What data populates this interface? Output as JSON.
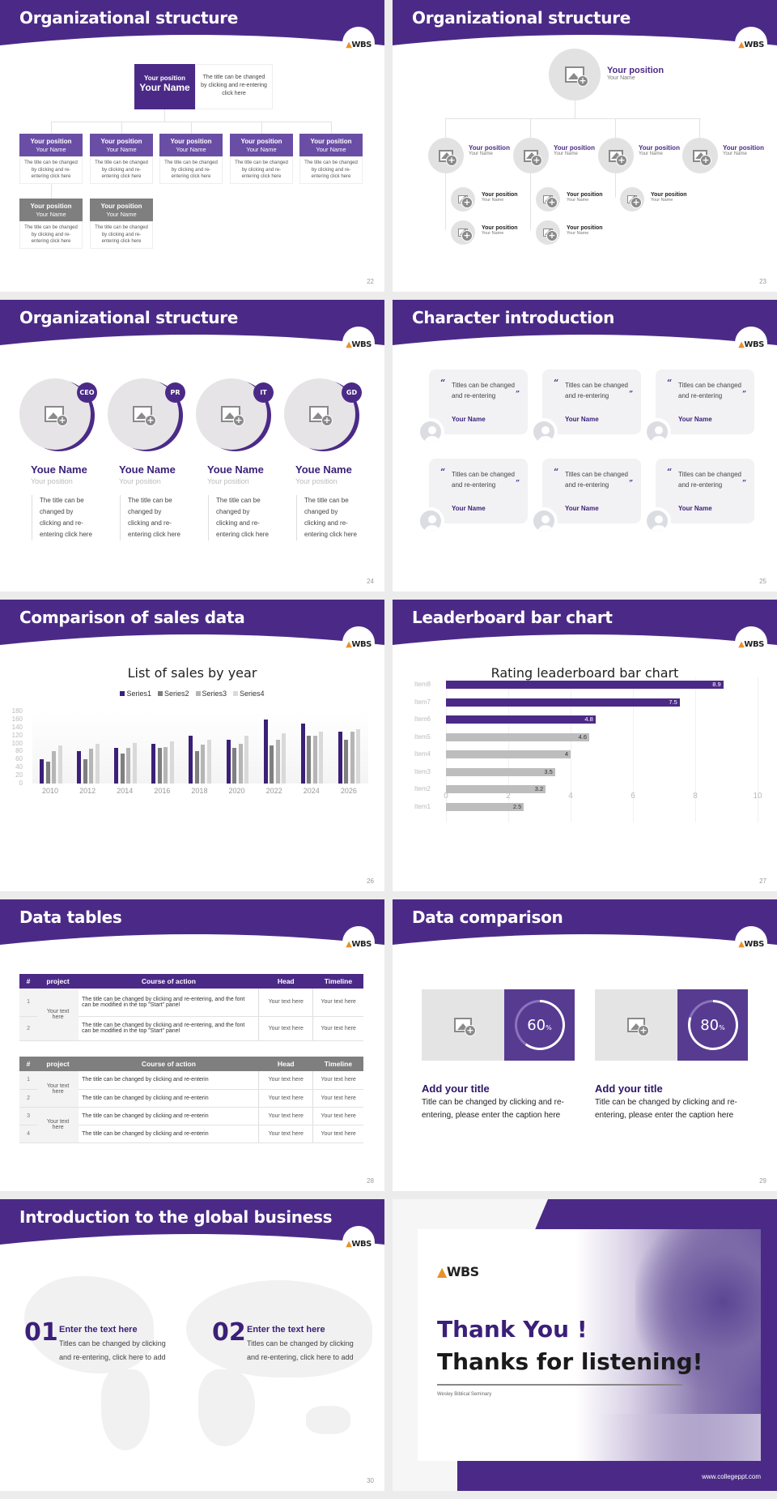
{
  "logo": {
    "text": "WBS"
  },
  "slides": {
    "s22": {
      "title": "Organizational structure",
      "page": "22",
      "top": {
        "position": "Your position",
        "name": "Your Name",
        "desc": "The title can be changed by clicking and re-entering click here"
      },
      "boxes": [
        {
          "position": "Your position",
          "name": "Your Name",
          "desc": "The title can be changed by clicking and re-entering click here"
        },
        {
          "position": "Your position",
          "name": "Your Name",
          "desc": "The title can be changed by clicking and re-entering click here"
        },
        {
          "position": "Your position",
          "name": "Your Name",
          "desc": "The title can be changed by clicking and re-entering click here"
        },
        {
          "position": "Your position",
          "name": "Your Name",
          "desc": "The title can be changed by clicking and re-entering click here"
        },
        {
          "position": "Your position",
          "name": "Your Name",
          "desc": "The title can be changed by clicking and re-entering click here"
        },
        {
          "position": "Your position",
          "name": "Your Name",
          "desc": "The title can be changed by clicking and re-entering click here"
        },
        {
          "position": "Your position",
          "name": "Your Name",
          "desc": "The title can be changed by clicking and re-entering click here"
        }
      ]
    },
    "s23": {
      "title": "Organizational structure",
      "page": "23",
      "top": {
        "position": "Your position",
        "name": "Your Name"
      },
      "level2": [
        {
          "position": "Your position",
          "name": "Your Name"
        },
        {
          "position": "Your position",
          "name": "Your Name"
        },
        {
          "position": "Your position",
          "name": "Your Name"
        },
        {
          "position": "Your position",
          "name": "Your Name"
        }
      ],
      "level3": [
        {
          "position": "Your position",
          "name": "Your Name"
        },
        {
          "position": "Your position",
          "name": "Your Name"
        },
        {
          "position": "Your position",
          "name": "Your Name"
        },
        {
          "position": "Your position",
          "name": "Your Name"
        },
        {
          "position": "Your position",
          "name": "Your Name"
        }
      ]
    },
    "s24": {
      "title": "Organizational structure",
      "page": "24",
      "people": [
        {
          "badge": "CEO",
          "name": "Youe Name",
          "position": "Your position",
          "desc": "The title can be changed by clicking and re-entering click here"
        },
        {
          "badge": "PR",
          "name": "Youe Name",
          "position": "Your position",
          "desc": "The title can be changed by clicking and re-entering click here"
        },
        {
          "badge": "IT",
          "name": "Youe Name",
          "position": "Your position",
          "desc": "The title can be changed by clicking and re-entering click here"
        },
        {
          "badge": "GD",
          "name": "Youe Name",
          "position": "Your position",
          "desc": "The title can be changed by clicking and re-entering click here"
        }
      ]
    },
    "s25": {
      "title": "Character introduction",
      "page": "25",
      "open_quote": "“",
      "close_quote": "”",
      "cards": [
        {
          "text": "Titles can be changed and re-entering",
          "name": "Your Name"
        },
        {
          "text": "Titles can be changed and re-entering",
          "name": "Your Name"
        },
        {
          "text": "Titles can be changed and re-entering",
          "name": "Your Name"
        },
        {
          "text": "Titles can be changed and re-entering",
          "name": "Your Name"
        },
        {
          "text": "Titles can be changed and re-entering",
          "name": "Your Name"
        },
        {
          "text": "Titles can be changed and re-entering",
          "name": "Your Name"
        }
      ]
    },
    "s26": {
      "title": "Comparison of sales data",
      "page": "26"
    },
    "s27": {
      "title": "Leaderboard bar chart",
      "page": "27"
    },
    "s28": {
      "title": "Data tables",
      "page": "28",
      "headers": [
        "#",
        "project",
        "Course of action",
        "Head",
        "Timeline"
      ],
      "table1": {
        "project": "Your text here",
        "rows": [
          {
            "num": "1",
            "action": "The title can be changed by clicking and re-entering, and the font can be modified in the top \"Start\" panel",
            "head": "Your text here",
            "timeline": "Your text here"
          },
          {
            "num": "2",
            "action": "The title can be changed by clicking and re-entering, and the font can be modified in the top \"Start\" panel",
            "head": "Your text here",
            "timeline": "Your text here"
          }
        ]
      },
      "table2": {
        "projects": [
          "Your text here",
          "Your text here"
        ],
        "rows": [
          {
            "num": "1",
            "action": "The title can be changed by clicking and re-enterin",
            "head": "Your text here",
            "timeline": "Your text here"
          },
          {
            "num": "2",
            "action": "The title can be changed by clicking and re-enterin",
            "head": "Your text here",
            "timeline": "Your text here"
          },
          {
            "num": "3",
            "action": "The title can be changed by clicking and re-enterin",
            "head": "Your text here",
            "timeline": "Your text here"
          },
          {
            "num": "4",
            "action": "The title can be changed by clicking and re-enterin",
            "head": "Your text here",
            "timeline": "Your text here"
          }
        ]
      }
    },
    "s29": {
      "title": "Data comparison",
      "page": "29",
      "items": [
        {
          "percent": 60,
          "value": "60",
          "unit": "%",
          "title": "Add your title",
          "text": "Title can be changed by clicking and re-entering, please enter the caption here"
        },
        {
          "percent": 80,
          "value": "80",
          "unit": "%",
          "title": "Add your title",
          "text": "Title can be changed by clicking and re-entering, please enter the caption here"
        }
      ]
    },
    "s30": {
      "title": "Introduction to the global business",
      "page": "30",
      "items": [
        {
          "num": "01",
          "title": "Enter the text here",
          "text": "Titles can be changed by clicking and re-entering, click here to add"
        },
        {
          "num": "02",
          "title": "Enter the text here",
          "text": "Titles can be changed by clicking and re-entering, click here to add"
        }
      ]
    },
    "s31": {
      "line1": "Thank You !",
      "line2": "Thanks for listening!",
      "subtitle": "Wesley Biblical Seminary",
      "url": "www.collegeppt.com"
    }
  },
  "colors": {
    "primary": "#4b2a87",
    "grey_dark": "#7f7f7f",
    "grey_mid": "#b5b5b5",
    "grey_light": "#d9d9d9"
  },
  "chart_data": [
    {
      "type": "bar",
      "title": "List of sales by year",
      "categories": [
        "2010",
        "2012",
        "2014",
        "2016",
        "2018",
        "2020",
        "2022",
        "2024",
        "2026"
      ],
      "series": [
        {
          "name": "Series1",
          "color": "#3b1f78",
          "values": [
            60,
            80,
            90,
            100,
            120,
            110,
            160,
            150,
            130
          ]
        },
        {
          "name": "Series2",
          "color": "#7f7f7f",
          "values": [
            55,
            60,
            75,
            90,
            80,
            90,
            96,
            120,
            110
          ]
        },
        {
          "name": "Series3",
          "color": "#b5b5b5",
          "values": [
            80,
            86,
            88,
            92,
            98,
            100,
            110,
            120,
            130
          ]
        },
        {
          "name": "Series4",
          "color": "#d9d9d9",
          "values": [
            95,
            99,
            102,
            105,
            110,
            120,
            126,
            130,
            135
          ]
        }
      ],
      "xlabel": "",
      "ylabel": "",
      "ylim": [
        0,
        180
      ],
      "yticks": [
        0,
        20,
        40,
        60,
        80,
        100,
        120,
        140,
        160,
        180
      ],
      "legend_position": "top",
      "grid": false
    },
    {
      "type": "bar",
      "orientation": "horizontal",
      "title": "Rating leaderboard bar chart",
      "categories": [
        "Item8",
        "Item7",
        "Item6",
        "Item5",
        "Item4",
        "Item3",
        "Item2",
        "Item1"
      ],
      "values": [
        8.9,
        7.5,
        4.8,
        4.6,
        4,
        3.5,
        3.2,
        2.5
      ],
      "highlight_top": 3,
      "xlim": [
        0,
        10
      ],
      "xticks": [
        0,
        2,
        4,
        6,
        8,
        10
      ],
      "grid": true,
      "data_labels": true
    }
  ]
}
